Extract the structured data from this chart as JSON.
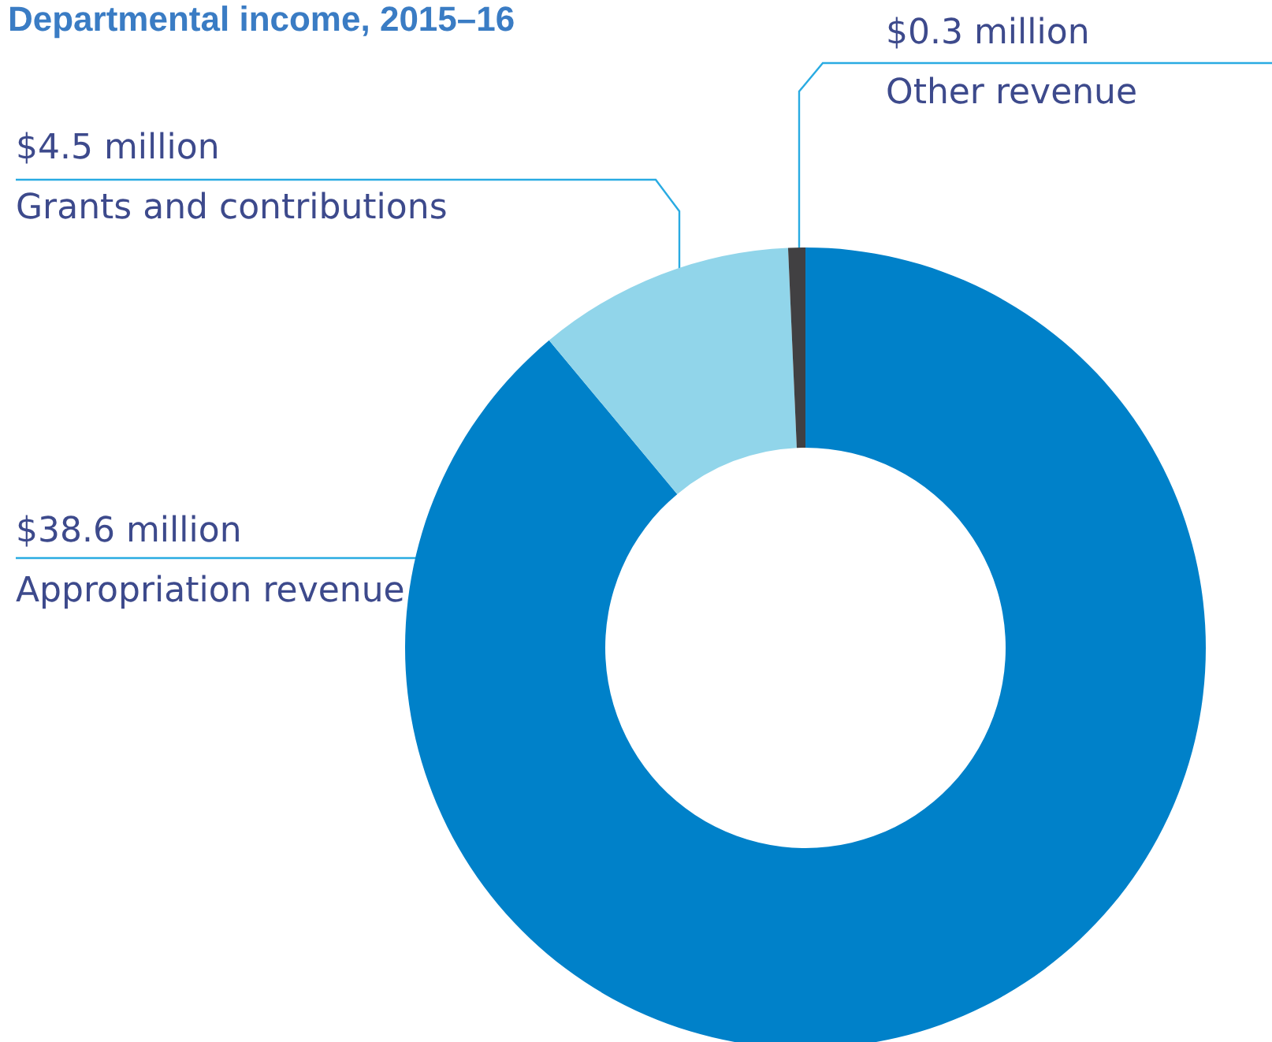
{
  "chart_data": {
    "type": "donut",
    "title": "Departmental income, 2015–16",
    "categories": [
      "Appropriation revenue",
      "Grants and contributions",
      "Other revenue"
    ],
    "values": [
      38.6,
      4.5,
      0.3
    ],
    "value_labels": [
      "$38.6 million",
      "$4.5 million",
      "$0.3 million"
    ],
    "colors": [
      "#0081c9",
      "#91d5ea",
      "#414042"
    ],
    "legend": false
  }
}
